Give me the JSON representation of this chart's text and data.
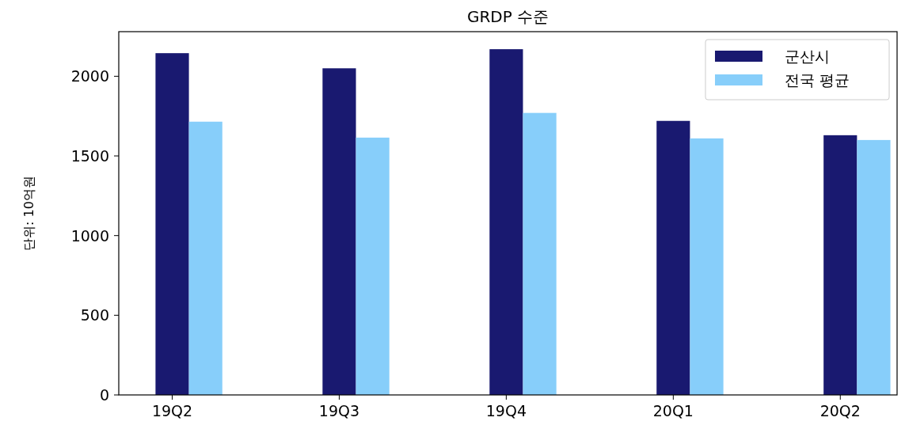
{
  "chart_data": {
    "type": "bar",
    "title": "GRDP 수준",
    "ylabel": "단위: 10억원",
    "categories": [
      "19Q2",
      "19Q3",
      "19Q4",
      "20Q1",
      "20Q2"
    ],
    "series": [
      {
        "name": "군산시",
        "color": "#191970",
        "values": [
          2145,
          2050,
          2170,
          1720,
          1630
        ]
      },
      {
        "name": "전국 평균",
        "color": "#87cefa",
        "values": [
          1715,
          1615,
          1770,
          1610,
          1600
        ]
      }
    ],
    "ylim": [
      0,
      2280
    ],
    "yticks": [
      0,
      500,
      1000,
      1500,
      2000
    ],
    "legend": "top right"
  }
}
